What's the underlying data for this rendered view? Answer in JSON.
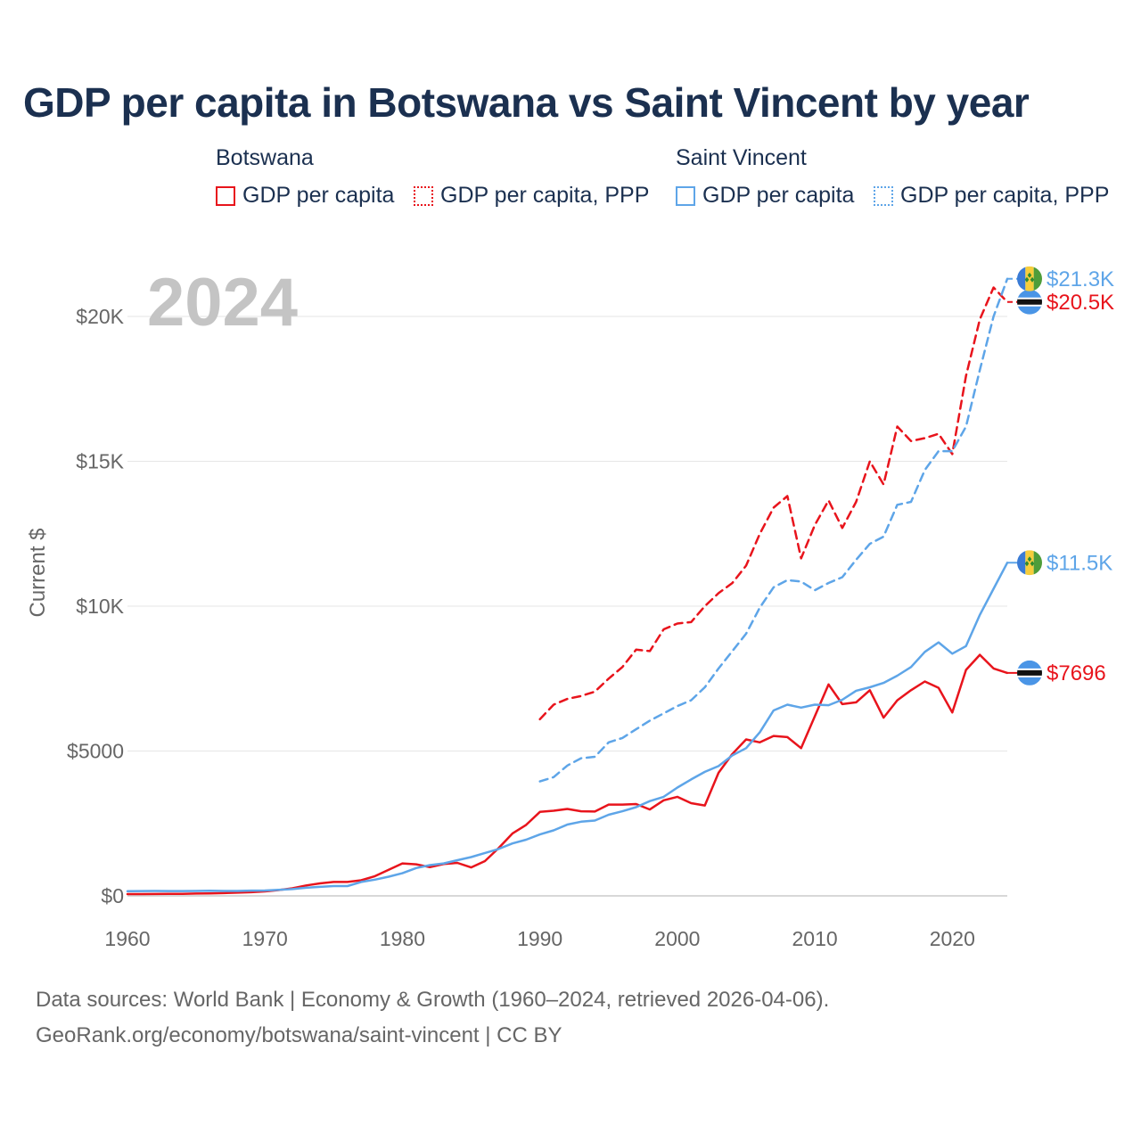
{
  "title": "GDP per capita in Botswana vs Saint Vincent by year",
  "watermark_year": "2024",
  "legend": {
    "groups": [
      {
        "name": "Botswana",
        "color": "#e8141c",
        "items": [
          {
            "label": "GDP per capita",
            "style": "solid"
          },
          {
            "label": "GDP per capita, PPP",
            "style": "dotted"
          }
        ]
      },
      {
        "name": "Saint Vincent",
        "color": "#5ea5e8",
        "items": [
          {
            "label": "GDP per capita",
            "style": "solid"
          },
          {
            "label": "GDP per capita, PPP",
            "style": "dotted"
          }
        ]
      }
    ]
  },
  "footer": {
    "line1": "Data sources: World Bank | Economy & Growth (1960–2024, retrieved 2026-04-06).",
    "line2": "GeoRank.org/economy/botswana/saint-vincent | CC BY"
  },
  "chart_data": {
    "type": "line",
    "title": "GDP per capita in Botswana vs Saint Vincent by year",
    "xlabel": "",
    "ylabel": "Current $",
    "xlim": [
      1960,
      2024
    ],
    "ylim": [
      0,
      22000
    ],
    "xticks": [
      1960,
      1970,
      1980,
      1990,
      2000,
      2010,
      2020
    ],
    "xtick_labels": [
      "1960",
      "1970",
      "1980",
      "1990",
      "2000",
      "2010",
      "2020"
    ],
    "yticks": [
      0,
      5000,
      10000,
      15000,
      20000
    ],
    "ytick_labels": [
      "$0",
      "$5000",
      "$10K",
      "$15K",
      "$20K"
    ],
    "grid": true,
    "series": [
      {
        "name": "Botswana GDP per capita",
        "country": "Botswana",
        "color": "#e8141c",
        "dash": "solid",
        "end_label": "$7696",
        "flag": "botswana",
        "x": [
          1960,
          1961,
          1962,
          1963,
          1964,
          1965,
          1966,
          1967,
          1968,
          1969,
          1970,
          1971,
          1972,
          1973,
          1974,
          1975,
          1976,
          1977,
          1978,
          1979,
          1980,
          1981,
          1982,
          1983,
          1984,
          1985,
          1986,
          1987,
          1988,
          1989,
          1990,
          1991,
          1992,
          1993,
          1994,
          1995,
          1996,
          1997,
          1998,
          1999,
          2000,
          2001,
          2002,
          2003,
          2004,
          2005,
          2006,
          2007,
          2008,
          2009,
          2010,
          2011,
          2012,
          2013,
          2014,
          2015,
          2016,
          2017,
          2018,
          2019,
          2020,
          2021,
          2022,
          2023,
          2024
        ],
        "values": [
          60,
          62,
          65,
          68,
          72,
          80,
          85,
          95,
          110,
          125,
          155,
          200,
          260,
          360,
          430,
          480,
          480,
          540,
          680,
          900,
          1120,
          1090,
          990,
          1100,
          1140,
          980,
          1200,
          1650,
          2150,
          2450,
          2900,
          2940,
          3000,
          2920,
          2910,
          3150,
          3150,
          3170,
          2980,
          3300,
          3420,
          3200,
          3120,
          4250,
          4900,
          5400,
          5300,
          5520,
          5480,
          5100,
          6200,
          7300,
          6620,
          6680,
          7100,
          6150,
          6750,
          7100,
          7400,
          7180,
          6330,
          7800,
          8320,
          7850,
          7696
        ]
      },
      {
        "name": "Botswana GDP per capita, PPP",
        "country": "Botswana",
        "color": "#e8141c",
        "dash": "dashed",
        "end_label": "$20.5K",
        "flag": "botswana",
        "x": [
          1990,
          1991,
          1992,
          1993,
          1994,
          1995,
          1996,
          1997,
          1998,
          1999,
          2000,
          2001,
          2002,
          2003,
          2004,
          2005,
          2006,
          2007,
          2008,
          2009,
          2010,
          2011,
          2012,
          2013,
          2014,
          2015,
          2016,
          2017,
          2018,
          2019,
          2020,
          2021,
          2022,
          2023,
          2024
        ],
        "values": [
          6100,
          6600,
          6800,
          6900,
          7050,
          7500,
          7900,
          8500,
          8450,
          9200,
          9400,
          9450,
          10000,
          10450,
          10800,
          11400,
          12500,
          13400,
          13800,
          11650,
          12800,
          13650,
          12700,
          13600,
          15000,
          14200,
          16200,
          15700,
          15800,
          15950,
          15250,
          17950,
          19900,
          21000,
          20500
        ]
      },
      {
        "name": "Saint Vincent GDP per capita",
        "country": "Saint Vincent",
        "color": "#5ea5e8",
        "dash": "solid",
        "end_label": "$11.5K",
        "flag": "saint-vincent",
        "x": [
          1960,
          1961,
          1962,
          1963,
          1964,
          1965,
          1966,
          1967,
          1968,
          1969,
          1970,
          1971,
          1972,
          1973,
          1974,
          1975,
          1976,
          1977,
          1978,
          1979,
          1980,
          1981,
          1982,
          1983,
          1984,
          1985,
          1986,
          1987,
          1988,
          1989,
          1990,
          1991,
          1992,
          1993,
          1994,
          1995,
          1996,
          1997,
          1998,
          1999,
          2000,
          2001,
          2002,
          2003,
          2004,
          2005,
          2006,
          2007,
          2008,
          2009,
          2010,
          2011,
          2012,
          2013,
          2014,
          2015,
          2016,
          2017,
          2018,
          2019,
          2020,
          2021,
          2022,
          2023,
          2024
        ],
        "values": [
          160,
          165,
          170,
          165,
          165,
          170,
          175,
          170,
          170,
          180,
          185,
          205,
          235,
          280,
          310,
          340,
          340,
          480,
          560,
          660,
          780,
          960,
          1060,
          1120,
          1230,
          1340,
          1480,
          1620,
          1810,
          1940,
          2120,
          2260,
          2460,
          2560,
          2600,
          2800,
          2920,
          3060,
          3270,
          3420,
          3740,
          4020,
          4280,
          4480,
          4850,
          5100,
          5650,
          6400,
          6600,
          6500,
          6600,
          6580,
          6770,
          7080,
          7200,
          7350,
          7600,
          7900,
          8420,
          8750,
          8360,
          8620,
          9700,
          10600,
          11500
        ]
      },
      {
        "name": "Saint Vincent GDP per capita, PPP",
        "country": "Saint Vincent",
        "color": "#5ea5e8",
        "dash": "dashed",
        "end_label": "$21.3K",
        "flag": "saint-vincent",
        "x": [
          1990,
          1991,
          1992,
          1993,
          1994,
          1995,
          1996,
          1997,
          1998,
          1999,
          2000,
          2001,
          2002,
          2003,
          2004,
          2005,
          2006,
          2007,
          2008,
          2009,
          2010,
          2011,
          2012,
          2013,
          2014,
          2015,
          2016,
          2017,
          2018,
          2019,
          2020,
          2021,
          2022,
          2023,
          2024
        ],
        "values": [
          3950,
          4100,
          4500,
          4750,
          4800,
          5300,
          5450,
          5750,
          6050,
          6300,
          6550,
          6750,
          7200,
          7850,
          8450,
          9050,
          9950,
          10650,
          10900,
          10850,
          10550,
          10800,
          11000,
          11600,
          12150,
          12400,
          13500,
          13600,
          14700,
          15350,
          15350,
          16200,
          18150,
          20000,
          21300
        ]
      }
    ]
  }
}
